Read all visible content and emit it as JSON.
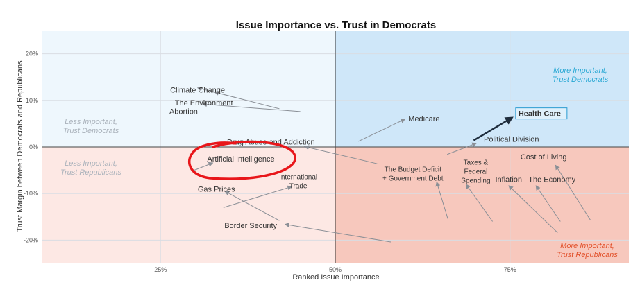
{
  "chart_data": {
    "type": "scatter",
    "title": "Issue Importance vs. Trust in Democrats",
    "xlabel": "Ranked Issue Importance",
    "ylabel": "Trust Margin between Democrats and Republicans",
    "xlim": [
      8,
      92
    ],
    "ylim": [
      -25,
      25
    ],
    "xticks": [
      {
        "value": 25,
        "label": "25%"
      },
      {
        "value": 50,
        "label": "50%"
      },
      {
        "value": 75,
        "label": "75%"
      }
    ],
    "yticks": [
      {
        "value": 20,
        "label": "20%"
      },
      {
        "value": 10,
        "label": "10%"
      },
      {
        "value": 0,
        "label": "0%"
      },
      {
        "value": -10,
        "label": "-10%"
      },
      {
        "value": -20,
        "label": "-20%"
      }
    ],
    "grid": true,
    "quadrants": [
      {
        "label": [
          "More Important,",
          "Trust Democrats"
        ],
        "color": "#29a8d4"
      },
      {
        "label": [
          "Less Important,",
          "Trust Democrats"
        ],
        "color": "#aab2bb"
      },
      {
        "label": [
          "Less Important,",
          "Trust Republicans"
        ],
        "color": "#aab2bb"
      },
      {
        "label": [
          "More Important,",
          "Trust Republicans"
        ],
        "color": "#e2512b"
      }
    ],
    "colors": {
      "q_top_left": "#eef7fd",
      "q_top_right": "#cfe7f9",
      "q_bottom_left": "#fde8e4",
      "q_bottom_right": "#f7c8bd",
      "arrow": "#8a8f96",
      "health_arrow": "#1f2d3d",
      "highlight_circle": "#e8161a",
      "health_label_box": "#dff0fb"
    },
    "points": [
      {
        "label": [
          "Climate Change"
        ],
        "x": 30.3,
        "y": 11.7,
        "from": [
          36,
          10.5
        ],
        "to": [
          30.3,
          12.7
        ]
      },
      {
        "label": [
          "The Environment"
        ],
        "x": 31.2,
        "y": 8.9,
        "from": [
          42,
          8.2
        ],
        "to": [
          32.7,
          11.8
        ]
      },
      {
        "label": [
          "Abortion"
        ],
        "x": 28.3,
        "y": 7.1,
        "from": [
          45,
          7.6
        ],
        "to": [
          31,
          9.2
        ]
      },
      {
        "label": [
          "Medicare"
        ],
        "x": 62.7,
        "y": 5.5,
        "from": [
          53.3,
          1.2
        ],
        "to": [
          60,
          6
        ]
      },
      {
        "label": [
          "Health Care"
        ],
        "x": 76,
        "y": 6.6,
        "from": [
          69.8,
          1.4
        ],
        "to": [
          75.3,
          6.3
        ]
      },
      {
        "label": [
          "Political Division"
        ],
        "x": 75.2,
        "y": 1.1,
        "from": [
          66,
          -1.6
        ],
        "to": [
          70.2,
          0.8
        ]
      },
      {
        "label": [
          "Drug Abuse and Addiction"
        ],
        "x": 40.8,
        "y": 0.5,
        "from": [
          56,
          -3.6
        ],
        "to": [
          45.6,
          0.1
        ]
      },
      {
        "label": [
          "Artificial Intelligence"
        ],
        "x": 36.5,
        "y": -3.1,
        "from": [
          29.8,
          -5
        ],
        "to": [
          32.5,
          -3.4
        ]
      },
      {
        "label": [
          "International",
          "Trade"
        ],
        "x": 44.7,
        "y": -6.9,
        "from": [
          34,
          -13
        ],
        "to": [
          43.8,
          -8.5
        ]
      },
      {
        "label": [
          "Gas Prices"
        ],
        "x": 33,
        "y": -9.6,
        "from": [
          42,
          -15.8
        ],
        "to": [
          34.2,
          -9.5
        ]
      },
      {
        "label": [
          "Border Security"
        ],
        "x": 37.9,
        "y": -17.4,
        "from": [
          58,
          -20.4
        ],
        "to": [
          42.8,
          -16.6
        ]
      },
      {
        "label": [
          "The Budget Deficit",
          "+ Government Debt"
        ],
        "x": 61.1,
        "y": -5.3,
        "from": [
          66.1,
          -15.4
        ],
        "to": [
          64.5,
          -7.5
        ]
      },
      {
        "label": [
          "Taxes &",
          "Federal",
          "Spending"
        ],
        "x": 70.1,
        "y": -3.8,
        "from": [
          72.5,
          -16
        ],
        "to": [
          68.7,
          -8
        ]
      },
      {
        "label": [
          "Inflation"
        ],
        "x": 74.8,
        "y": -7.5,
        "from": [
          81.8,
          -18.4
        ],
        "to": [
          74.8,
          -8.3
        ]
      },
      {
        "label": [
          "The Economy"
        ],
        "x": 81,
        "y": -7.5,
        "from": [
          82.2,
          -16
        ],
        "to": [
          78.7,
          -8.3
        ]
      },
      {
        "label": [
          "Cost of Living"
        ],
        "x": 79.8,
        "y": -2.7,
        "from": [
          86.5,
          -15.7
        ],
        "to": [
          81.5,
          -3.9
        ]
      }
    ],
    "annotations": [
      {
        "type": "hand-drawn-circle",
        "target": "Artificial Intelligence"
      }
    ]
  }
}
